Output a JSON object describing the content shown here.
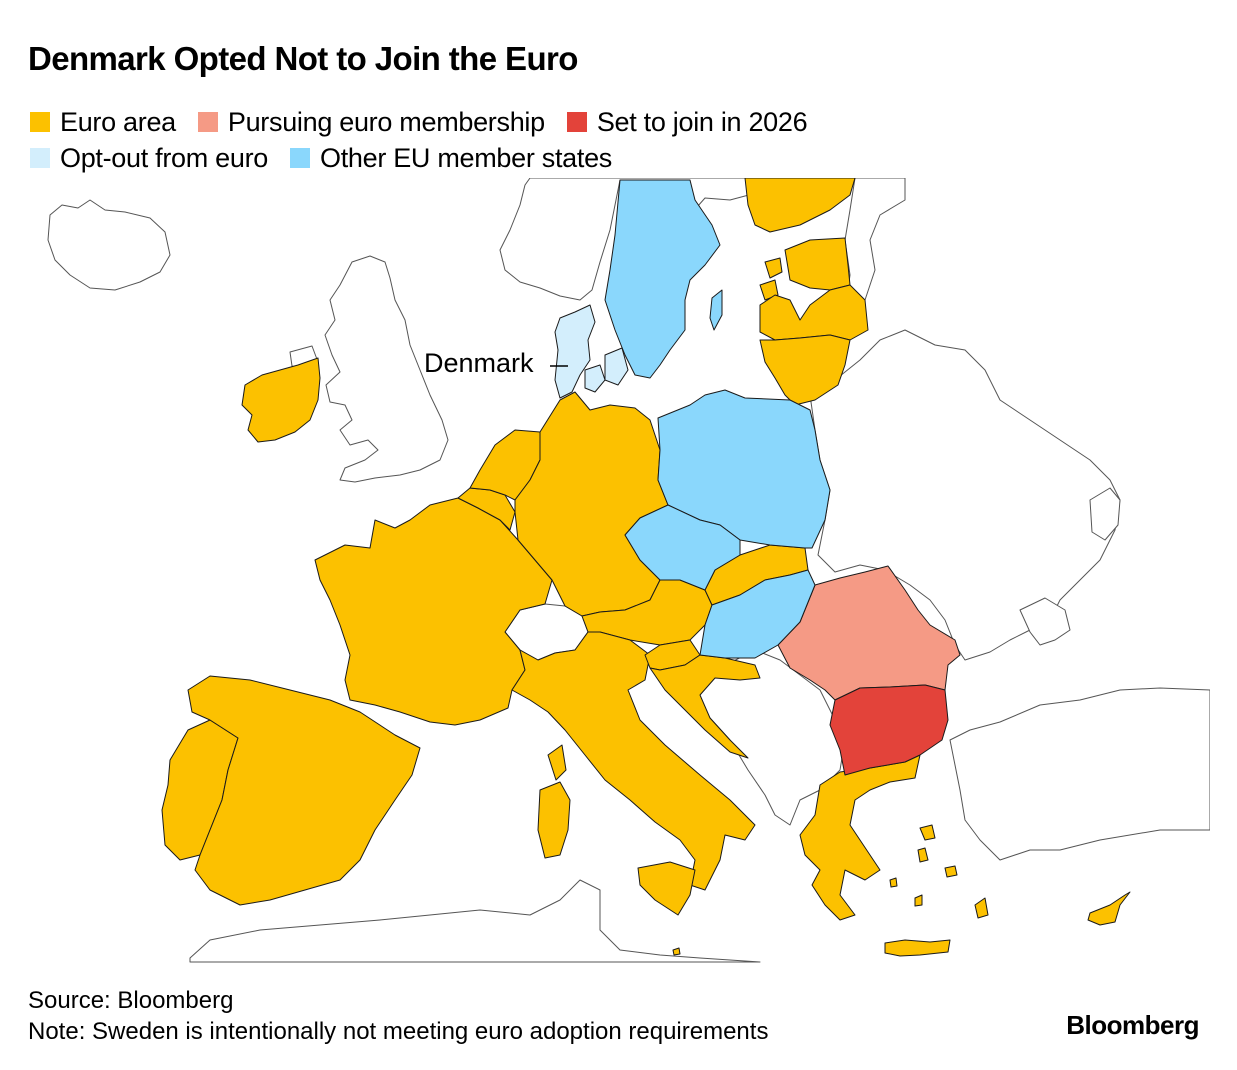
{
  "title": "Denmark Opted Not to Join the Euro",
  "legend": [
    {
      "label": "Euro area",
      "color": "#fcc100"
    },
    {
      "label": "Pursuing euro membership",
      "color": "#f59a85"
    },
    {
      "label": "Set to join in 2026",
      "color": "#e3433a"
    },
    {
      "label": "Opt-out from euro",
      "color": "#d3eefc"
    },
    {
      "label": "Other EU member states",
      "color": "#8ad7fc"
    }
  ],
  "map": {
    "annotation": "Denmark",
    "countries": {
      "euro": [
        "Ireland",
        "Portugal",
        "Spain",
        "France",
        "Belgium",
        "Netherlands",
        "Luxembourg",
        "Germany",
        "Austria",
        "Italy",
        "Slovenia",
        "Croatia",
        "Slovakia",
        "Finland",
        "Estonia",
        "Latvia",
        "Lithuania",
        "Greece",
        "Cyprus",
        "Malta"
      ],
      "pursuing": [
        "Romania"
      ],
      "joining_2026": [
        "Bulgaria"
      ],
      "opt_out": [
        "Denmark"
      ],
      "other_eu": [
        "Sweden",
        "Poland",
        "Czechia",
        "Hungary"
      ]
    }
  },
  "footer": {
    "source": "Source: Bloomberg",
    "note": "Note: Sweden is intentionally not meeting euro adoption requirements"
  },
  "brand": "Bloomberg"
}
